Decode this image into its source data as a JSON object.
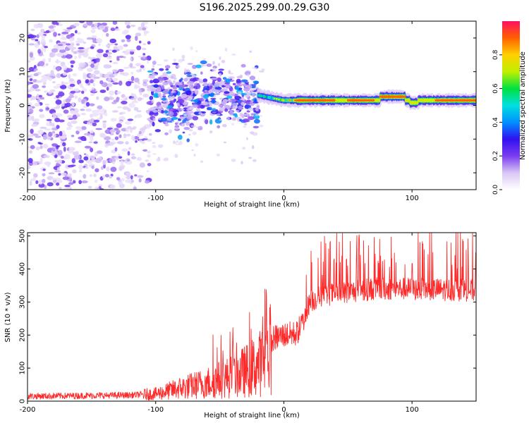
{
  "title": "S196.2025.299.00.29.G30",
  "chart_data": [
    {
      "type": "heatmap",
      "xlabel": "Height of straight line (km)",
      "ylabel": "Frequency (Hz)",
      "xlim": [
        -200,
        150
      ],
      "ylim": [
        -25,
        25
      ],
      "xticks": [
        -200,
        -100,
        0,
        100
      ],
      "yticks": [
        -20,
        -10,
        0,
        10,
        20
      ],
      "colorbar": {
        "label": "Normalized spectral amplitude",
        "range": [
          0,
          1
        ],
        "ticks": [
          "0.0",
          "0.2",
          "0.4",
          "0.6",
          "0.8"
        ],
        "tick_values": [
          0.0,
          0.2,
          0.4,
          0.6,
          0.8
        ],
        "colormap": [
          "#ffffff",
          "#d9c6f5",
          "#7a3cf0",
          "#3010f0",
          "#0090ff",
          "#00e0e0",
          "#00e040",
          "#c0f000",
          "#ffd000",
          "#ff6000",
          "#ff1060"
        ]
      },
      "description_regions": [
        {
          "x_range": [
            -200,
            -105
          ],
          "y_range": [
            -25,
            25
          ],
          "amplitude": [
            0.05,
            0.25
          ]
        },
        {
          "x_range": [
            -105,
            -20
          ],
          "y_range": [
            -8,
            10
          ],
          "amplitude": [
            0.1,
            0.45
          ]
        },
        {
          "x_range": [
            -20,
            150
          ],
          "y_range": [
            0,
            3
          ],
          "amplitude": [
            0.4,
            1.0
          ]
        }
      ]
    },
    {
      "type": "line",
      "xlabel": "Height of straight line (km)",
      "ylabel": "SNR (10 * v/v)",
      "xlim": [
        -200,
        150
      ],
      "ylim": [
        0,
        510
      ],
      "xticks": [
        -200,
        -100,
        0,
        100
      ],
      "yticks": [
        0,
        100,
        200,
        300,
        400,
        500
      ],
      "series": [
        {
          "name": "SNR",
          "color": "#ff2a2a",
          "trend_x": [
            -200,
            -120,
            -100,
            -80,
            -60,
            -40,
            -30,
            -20,
            -12,
            -8,
            0,
            10,
            15,
            20,
            30,
            50,
            70,
            100,
            150
          ],
          "trend_y": [
            15,
            18,
            22,
            40,
            55,
            75,
            90,
            110,
            140,
            190,
            200,
            205,
            240,
            300,
            320,
            330,
            340,
            340,
            335
          ]
        }
      ]
    }
  ]
}
